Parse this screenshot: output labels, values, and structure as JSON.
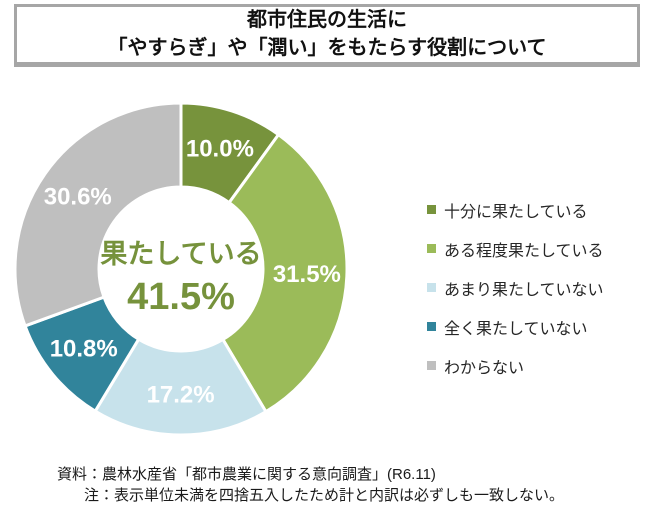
{
  "title": {
    "line1": "都市住民の生活に",
    "line2": "「やすらぎ」や「潤い」をもたらす役割について"
  },
  "chart_data": {
    "type": "pie",
    "subtype": "donut",
    "title": "都市住民の生活に「やすらぎ」や「潤い」をもたらす役割について",
    "inner_radius_ratio": 0.49,
    "start_angle_deg": 0,
    "direction": "clockwise",
    "legend_position": "right",
    "units": "%",
    "series": [
      {
        "label": "十分に果たしている",
        "value": 10.0,
        "display": "10.0%",
        "color": "#77933C"
      },
      {
        "label": "ある程度果たしている",
        "value": 31.5,
        "display": "31.5%",
        "color": "#9BBB59"
      },
      {
        "label": "あまり果たしていない",
        "value": 17.2,
        "display": "17.2%",
        "color": "#C7E2EB"
      },
      {
        "label": "全く果たしていない",
        "value": 10.8,
        "display": "10.8%",
        "color": "#31849B"
      },
      {
        "label": "わからない",
        "value": 30.6,
        "display": "30.6%",
        "color": "#BFBFBF"
      }
    ],
    "center_label": {
      "text": "果たしている",
      "value": "41.5%"
    }
  },
  "footer": {
    "source": "資料：農林水産省「都市農業に関する意向調査」(R6.11)",
    "note": "注：表示単位未満を四捨五入したため計と内訳は必ずしも一致しない。"
  }
}
